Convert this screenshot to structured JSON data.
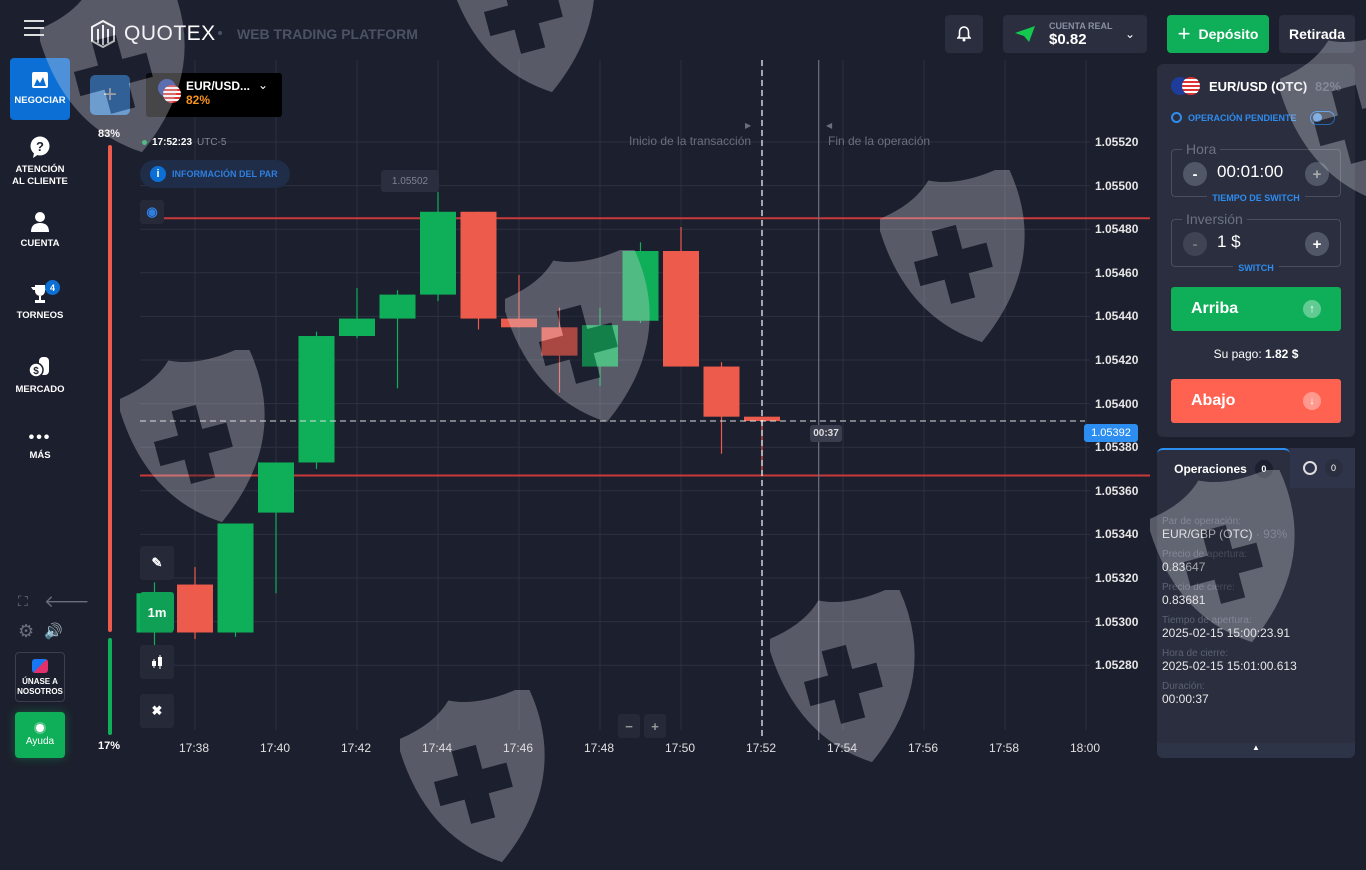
{
  "header": {
    "brand": "QUOTEX",
    "subtitle": "WEB TRADING PLATFORM",
    "account_label": "CUENTA REAL",
    "account_balance": "$0.82",
    "deposit_label": "Depósito",
    "withdraw_label": "Retirada"
  },
  "sidebar": {
    "items": [
      {
        "label": "NEGOCIAR",
        "icon": "chart-icon"
      },
      {
        "label": "ATENCIÓN AL CLIENTE",
        "icon": "help-icon"
      },
      {
        "label": "CUENTA",
        "icon": "user-icon"
      },
      {
        "label": "TORNEOS",
        "icon": "trophy-icon",
        "badge": "4"
      },
      {
        "label": "MERCADO",
        "icon": "coins-icon"
      },
      {
        "label": "MÁS",
        "icon": "more-icon"
      }
    ],
    "join_label": "ÚNASE A NOSOTROS",
    "help_label": "Ayuda"
  },
  "sentiment": {
    "up_percent": "83%",
    "down_percent": "17%",
    "up_fraction": 0.83
  },
  "asset_tab": {
    "name": "EUR/USD...",
    "payout": "82%"
  },
  "chart_header": {
    "time": "17:52:23",
    "timezone": "UTC-5",
    "info_label": "INFORMACIÓN DEL PAR",
    "hover_price": "1.05502"
  },
  "toolbar": {
    "timeframe": "1m"
  },
  "chart_data": {
    "type": "candlestick",
    "x_ticks": [
      "17:38",
      "17:40",
      "17:42",
      "17:44",
      "17:46",
      "17:48",
      "17:50",
      "17:52",
      "17:54",
      "17:56",
      "17:58",
      "18:00"
    ],
    "y_ticks": [
      "1.05520",
      "1.05500",
      "1.05480",
      "1.05460",
      "1.05440",
      "1.05420",
      "1.05400",
      "1.05380",
      "1.05360",
      "1.05340",
      "1.05320",
      "1.05300",
      "1.05280"
    ],
    "ylim": [
      1.0527,
      1.05535
    ],
    "candles": [
      {
        "t": "17:37",
        "o": 1.05295,
        "h": 1.05318,
        "l": 1.05287,
        "c": 1.05313
      },
      {
        "t": "17:38",
        "o": 1.05317,
        "h": 1.05325,
        "l": 1.05292,
        "c": 1.05295
      },
      {
        "t": "17:39",
        "o": 1.05295,
        "h": 1.05345,
        "l": 1.05293,
        "c": 1.05345
      },
      {
        "t": "17:40",
        "o": 1.0535,
        "h": 1.05373,
        "l": 1.05313,
        "c": 1.05373
      },
      {
        "t": "17:41",
        "o": 1.05373,
        "h": 1.05433,
        "l": 1.0537,
        "c": 1.05431
      },
      {
        "t": "17:42",
        "o": 1.05431,
        "h": 1.05453,
        "l": 1.0543,
        "c": 1.05439
      },
      {
        "t": "17:43",
        "o": 1.05439,
        "h": 1.05452,
        "l": 1.05407,
        "c": 1.0545
      },
      {
        "t": "17:44",
        "o": 1.0545,
        "h": 1.05497,
        "l": 1.05447,
        "c": 1.05488
      },
      {
        "t": "17:45",
        "o": 1.05488,
        "h": 1.05488,
        "l": 1.05434,
        "c": 1.05439
      },
      {
        "t": "17:46",
        "o": 1.05439,
        "h": 1.05459,
        "l": 1.05435,
        "c": 1.05435
      },
      {
        "t": "17:47",
        "o": 1.05435,
        "h": 1.05444,
        "l": 1.05405,
        "c": 1.05422
      },
      {
        "t": "17:48",
        "o": 1.05417,
        "h": 1.05444,
        "l": 1.05408,
        "c": 1.05436
      },
      {
        "t": "17:49",
        "o": 1.05438,
        "h": 1.05474,
        "l": 1.05437,
        "c": 1.0547
      },
      {
        "t": "17:50",
        "o": 1.0547,
        "h": 1.05481,
        "l": 1.05417,
        "c": 1.05417
      },
      {
        "t": "17:51",
        "o": 1.05417,
        "h": 1.05419,
        "l": 1.05377,
        "c": 1.05394
      },
      {
        "t": "17:52",
        "o": 1.05394,
        "h": 1.05394,
        "l": 1.05369,
        "c": 1.05392
      }
    ],
    "horizontal_lines": [
      1.05485,
      1.05367
    ],
    "current_price": "1.05392",
    "countdown": "00:37",
    "trade_start_label": "Inicio de la transacción",
    "trade_end_label": "Fin de la operación",
    "start_time": "17:52",
    "end_time": "17:53.4",
    "colors": {
      "up": "#0faf59",
      "down": "#ed5b4d"
    }
  },
  "trade_panel": {
    "pair": "EUR/USD (OTC)",
    "payout": "82%",
    "pending_label": "OPERACIÓN PENDIENTE",
    "time_legend": "Hora",
    "time_value": "00:01:00",
    "time_switch": "TIEMPO DE SWITCH",
    "amount_legend": "Inversión",
    "amount_value": "1 $",
    "amount_switch": "SWITCH",
    "up_label": "Arriba",
    "payout_label": "Su pago:",
    "payout_value": "1.82 $",
    "down_label": "Abajo"
  },
  "operations": {
    "tab_label": "Operaciones",
    "tab_count": "0",
    "pending_count": "0",
    "fields": [
      {
        "label": "Par de operación:",
        "value": "EUR/GBP (OTC)",
        "extra": "93%"
      },
      {
        "label": "Precio de apertura:",
        "value": "0.83647"
      },
      {
        "label": "Precio de cierre:",
        "value": "0.83681"
      },
      {
        "label": "Tiempo de apertura:",
        "value": "2025-02-15 15:00:23.91"
      },
      {
        "label": "Hora de cierre:",
        "value": "2025-02-15 15:01:00.613"
      },
      {
        "label": "Duración:",
        "value": "00:00:37"
      }
    ]
  }
}
